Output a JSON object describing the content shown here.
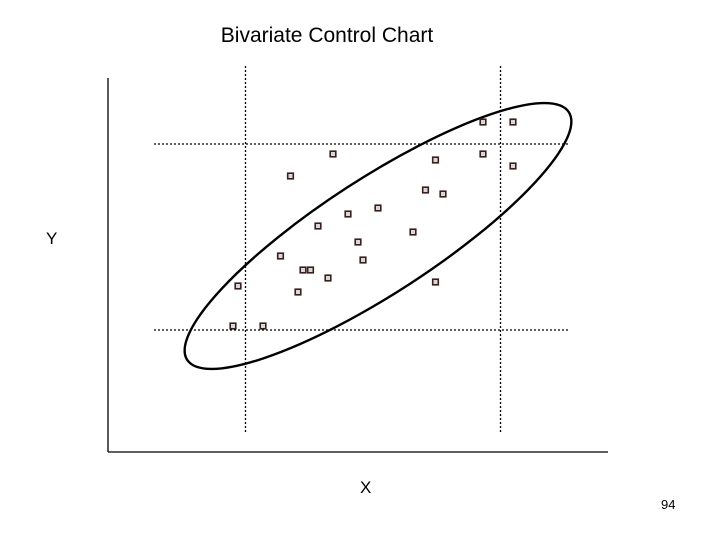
{
  "chart_data": {
    "type": "scatter",
    "title": "Bivariate Control Chart",
    "xlabel": "X",
    "ylabel": "Y",
    "xlim": [
      0,
      100
    ],
    "ylim": [
      0,
      100
    ],
    "grid": false,
    "control_limits": {
      "x_lower": 27.5,
      "x_upper": 78.5,
      "y_lower": 30.5,
      "y_upper": 77.0
    },
    "confidence_ellipse": {
      "center": [
        54,
        54
      ],
      "semi_major": 45.5,
      "semi_minor": 11.5,
      "angle_deg": 33
    },
    "points": [
      {
        "x": 75.0,
        "y": 82.5
      },
      {
        "x": 81.0,
        "y": 82.5
      },
      {
        "x": 45.0,
        "y": 74.5
      },
      {
        "x": 65.5,
        "y": 73.0
      },
      {
        "x": 75.0,
        "y": 74.5
      },
      {
        "x": 81.0,
        "y": 71.5
      },
      {
        "x": 36.5,
        "y": 69.0
      },
      {
        "x": 63.5,
        "y": 65.5
      },
      {
        "x": 67.0,
        "y": 64.5
      },
      {
        "x": 54.0,
        "y": 61.0
      },
      {
        "x": 48.0,
        "y": 59.5
      },
      {
        "x": 42.0,
        "y": 56.5
      },
      {
        "x": 61.0,
        "y": 55.0
      },
      {
        "x": 50.0,
        "y": 52.5
      },
      {
        "x": 34.5,
        "y": 49.0
      },
      {
        "x": 51.0,
        "y": 48.0
      },
      {
        "x": 39.0,
        "y": 45.5
      },
      {
        "x": 40.5,
        "y": 45.5
      },
      {
        "x": 44.0,
        "y": 43.5
      },
      {
        "x": 65.5,
        "y": 42.5
      },
      {
        "x": 26.0,
        "y": 41.5
      },
      {
        "x": 38.0,
        "y": 40.0
      },
      {
        "x": 25.0,
        "y": 31.5
      },
      {
        "x": 31.0,
        "y": 31.5
      }
    ]
  },
  "footer": {
    "page_number": "94"
  }
}
